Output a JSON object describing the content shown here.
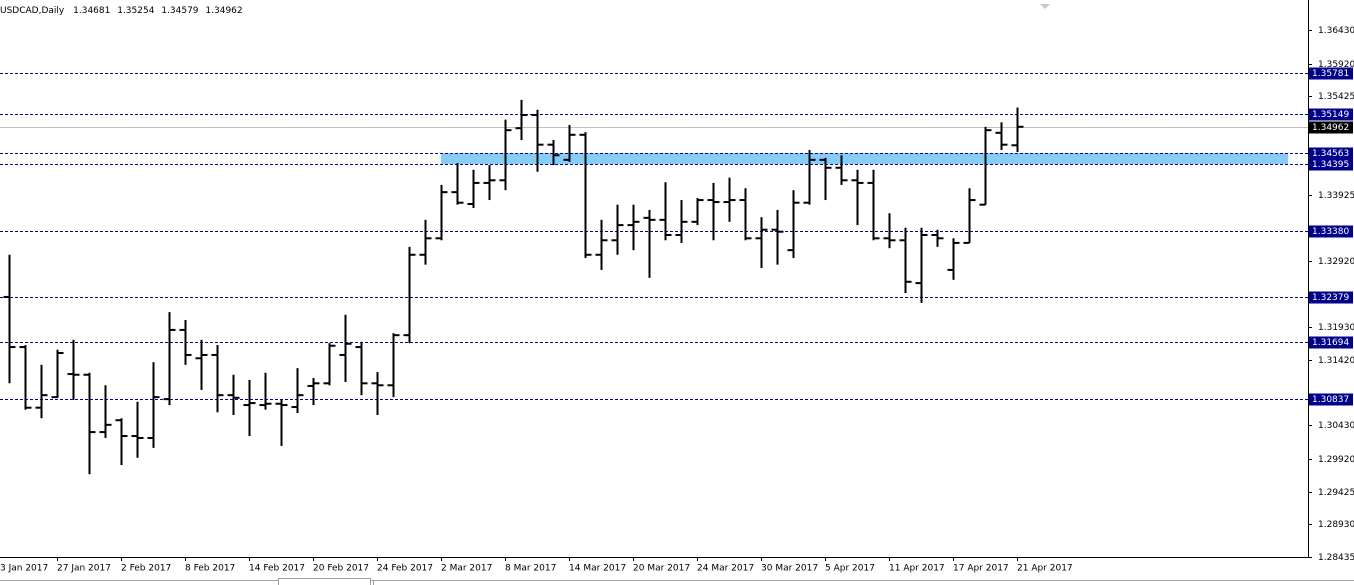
{
  "chart_data": {
    "type": "ohlc",
    "title": "USDCAD,Daily",
    "color": "#000000",
    "first_date_label": "3 Jan 2017",
    "categories": [
      null,
      null,
      null,
      "27 Jan 2017",
      null,
      null,
      null,
      "2 Feb 2017",
      null,
      null,
      null,
      "8 Feb 2017",
      null,
      null,
      null,
      "14 Feb 2017",
      null,
      null,
      null,
      "20 Feb 2017",
      null,
      null,
      null,
      "24 Feb 2017",
      null,
      null,
      null,
      "2 Mar 2017",
      null,
      null,
      null,
      "8 Mar 2017",
      null,
      null,
      null,
      "14 Mar 2017",
      null,
      null,
      null,
      "20 Mar 2017",
      null,
      null,
      null,
      "24 Mar 2017",
      null,
      null,
      null,
      "30 Mar 2017",
      null,
      null,
      null,
      "5 Apr 2017",
      null,
      null,
      null,
      "11 Apr 2017",
      null,
      null,
      null,
      "17 Apr 2017",
      null,
      null,
      null,
      "21 Apr 2017"
    ],
    "open": [
      1.3238,
      1.3162,
      1.307,
      1.3086,
      1.3121,
      1.312,
      1.3033,
      1.3051,
      1.3027,
      1.3024,
      1.3083,
      1.3188,
      1.3145,
      1.315,
      1.3089,
      1.3074,
      1.3074,
      1.3076,
      1.3071,
      1.3103,
      1.3107,
      1.315,
      1.3162,
      1.3107,
      1.3104,
      1.318,
      1.3302,
      1.3327,
      1.3397,
      1.3379,
      1.3411,
      1.3415,
      1.3494,
      1.3514,
      1.3469,
      1.3446,
      1.3484,
      1.3302,
      1.3324,
      1.3347,
      1.3358,
      1.3355,
      1.3332,
      1.3352,
      1.3385,
      1.3382,
      1.3385,
      1.3327,
      1.334,
      1.3309,
      1.3381,
      1.3446,
      1.3434,
      1.3415,
      1.3411,
      1.3327,
      1.3324,
      1.3259,
      1.3332,
      1.3279,
      1.332,
      1.3378,
      1.3487,
      1.34681
    ],
    "high": [
      1.3302,
      1.3165,
      1.3135,
      1.3158,
      1.3173,
      1.3123,
      1.3104,
      1.3054,
      1.3079,
      1.3139,
      1.3215,
      1.3203,
      1.3173,
      1.3165,
      1.312,
      1.3112,
      1.3123,
      1.3082,
      1.313,
      1.3115,
      1.3168,
      1.3211,
      1.317,
      1.3124,
      1.3183,
      1.3314,
      1.3355,
      1.3408,
      1.3441,
      1.3431,
      1.3438,
      1.3507,
      1.3537,
      1.3522,
      1.3476,
      1.3499,
      1.3488,
      1.3355,
      1.3378,
      1.3378,
      1.337,
      1.3412,
      1.3385,
      1.3388,
      1.3411,
      1.3419,
      1.3403,
      1.3359,
      1.337,
      1.34,
      1.3461,
      1.3449,
      1.3453,
      1.3431,
      1.3431,
      1.3365,
      1.3343,
      1.3343,
      1.334,
      1.3327,
      1.3403,
      1.3496,
      1.3503,
      1.35254
    ],
    "low": [
      1.3107,
      1.3067,
      1.3054,
      1.3085,
      1.3082,
      1.2969,
      1.3024,
      1.2983,
      1.2994,
      1.3009,
      1.3074,
      1.3135,
      1.3097,
      1.3063,
      1.3059,
      1.3027,
      1.3067,
      1.3012,
      1.3062,
      1.3074,
      1.3104,
      1.3109,
      1.3089,
      1.3059,
      1.3086,
      1.3168,
      1.3287,
      1.3324,
      1.3378,
      1.3373,
      1.3385,
      1.34,
      1.3476,
      1.3428,
      1.3438,
      1.3443,
      1.3297,
      1.3279,
      1.3302,
      1.3309,
      1.3267,
      1.3324,
      1.332,
      1.3347,
      1.3324,
      1.3352,
      1.3324,
      1.3282,
      1.3287,
      1.3297,
      1.3378,
      1.3385,
      1.3408,
      1.3347,
      1.3324,
      1.3312,
      1.3244,
      1.3229,
      1.3314,
      1.3264,
      1.332,
      1.3378,
      1.3461,
      1.34579
    ],
    "close": [
      1.3162,
      1.307,
      1.3089,
      1.3153,
      1.312,
      1.3033,
      1.3044,
      1.3027,
      1.3024,
      1.3086,
      1.3188,
      1.315,
      1.315,
      1.3089,
      1.3085,
      1.3077,
      1.3076,
      1.3074,
      1.3089,
      1.3107,
      1.3164,
      1.3167,
      1.3107,
      1.3104,
      1.318,
      1.3302,
      1.3327,
      1.3397,
      1.3381,
      1.3411,
      1.3415,
      1.3491,
      1.3514,
      1.3469,
      1.3453,
      1.3484,
      1.3302,
      1.3324,
      1.3347,
      1.3352,
      1.3355,
      1.3332,
      1.3352,
      1.3385,
      1.3382,
      1.3385,
      1.3327,
      1.334,
      1.3337,
      1.3381,
      1.3446,
      1.3434,
      1.3415,
      1.3411,
      1.3327,
      1.3324,
      1.3261,
      1.3332,
      1.3327,
      1.332,
      1.3385,
      1.3491,
      1.3469,
      1.34962
    ],
    "ylim": [
      1.28435,
      1.36885
    ],
    "yticks": [
      {
        "value": 1.3643,
        "label": "1.36430"
      },
      {
        "value": 1.3592,
        "label": "1.35920"
      },
      1.35425,
      1.33925,
      {
        "value": 1.3292,
        "label": "1.32920"
      },
      {
        "value": 1.3193,
        "label": "1.31930"
      },
      {
        "value": 1.3142,
        "label": "1.31420"
      },
      {
        "value": 1.3043,
        "label": "1.30430"
      },
      {
        "value": 1.2992,
        "label": "1.29920"
      },
      1.29425,
      {
        "value": 1.2893,
        "label": "1.28930"
      },
      1.28435
    ],
    "levels": [
      1.35781,
      1.35149,
      1.34563,
      1.34395,
      1.3338,
      1.32379,
      1.31694,
      1.30837
    ],
    "level_labels": [
      "1.35781",
      "1.35149",
      "1.34563",
      "1.34395",
      "1.33380",
      "1.32379",
      "1.31694",
      "1.30837"
    ],
    "level_color": "#00008b",
    "zone_color": "#87cbf7",
    "price_line_color": "#c0c0c0"
  }
}
